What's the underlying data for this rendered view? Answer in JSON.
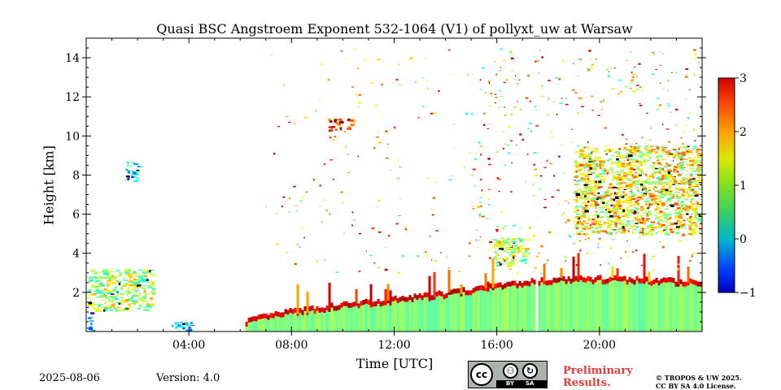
{
  "chart_data": {
    "type": "heatmap",
    "title": "Quasi BSC Angstroem Exponent 532-1064 (V1) of pollyxt_uw at Warsaw",
    "xlabel": "Time [UTC]",
    "ylabel": "Height [km]",
    "x_range_hours": [
      0,
      24
    ],
    "y_range_km": [
      0,
      15
    ],
    "x_ticks": [
      "04:00",
      "08:00",
      "12:00",
      "16:00",
      "20:00"
    ],
    "x_tick_hours": [
      4,
      8,
      12,
      16,
      20
    ],
    "y_ticks": [
      2,
      4,
      6,
      8,
      10,
      12,
      14
    ],
    "colorbar": {
      "range": [
        -1,
        3
      ],
      "ticks": [
        -1,
        0,
        1,
        2,
        3
      ],
      "tick_labels": [
        "−1",
        "0",
        "1",
        "2",
        "3"
      ],
      "colormap": "jet"
    },
    "features": [
      {
        "kind": "boundary_layer",
        "start_h": 6.2,
        "end_h": 24.0,
        "top_km": [
          [
            6.2,
            0.5
          ],
          [
            8.0,
            1.0
          ],
          [
            10.0,
            1.3
          ],
          [
            12.0,
            1.6
          ],
          [
            14.0,
            1.9
          ],
          [
            16.0,
            2.3
          ],
          [
            18.0,
            2.6
          ],
          [
            20.0,
            2.65
          ],
          [
            24.0,
            2.5
          ]
        ],
        "value": 1.0,
        "gap_h": [
          17.45,
          17.6
        ]
      },
      {
        "kind": "cloud_layer",
        "start_h": 19.0,
        "end_h": 24.0,
        "bottom_km": 5.0,
        "top_km": 9.5,
        "value": 1.5
      },
      {
        "kind": "cloud_patch",
        "start_h": 9.4,
        "end_h": 10.4,
        "bottom_km": 10.3,
        "top_km": 10.9,
        "value": 2.3
      },
      {
        "kind": "cloud_patch",
        "start_h": 1.5,
        "end_h": 2.0,
        "bottom_km": 7.7,
        "top_km": 8.7,
        "value": 0.2
      },
      {
        "kind": "low_aerosol",
        "start_h": 0.0,
        "end_h": 2.6,
        "bottom_km": 1.1,
        "top_km": 3.2,
        "value": 1.2
      },
      {
        "kind": "surface_patch",
        "start_h": 3.3,
        "end_h": 4.2,
        "bottom_km": 0.0,
        "top_km": 0.5,
        "value": 0.4
      },
      {
        "kind": "surface_patch",
        "start_h": 0.0,
        "end_h": 0.2,
        "bottom_km": 0.0,
        "top_km": 1.3,
        "value": 0.0
      },
      {
        "kind": "residual_layer",
        "start_h": 15.8,
        "end_h": 17.2,
        "bottom_km": 3.4,
        "top_km": 4.8,
        "value": 1.2
      }
    ]
  },
  "footer": {
    "date": "2025-08-06",
    "version": "Version: 4.0",
    "preliminary_line1": "Preliminary",
    "preliminary_line2": "Results.",
    "copyright_line1": "© TROPOS & UW 2025.",
    "copyright_line2": "CC BY SA 4.0 License."
  },
  "license_badge": {
    "cc": "cc",
    "by": "BY",
    "sa": "SA",
    "by_symbol": "⚇",
    "sa_symbol": "↻"
  }
}
